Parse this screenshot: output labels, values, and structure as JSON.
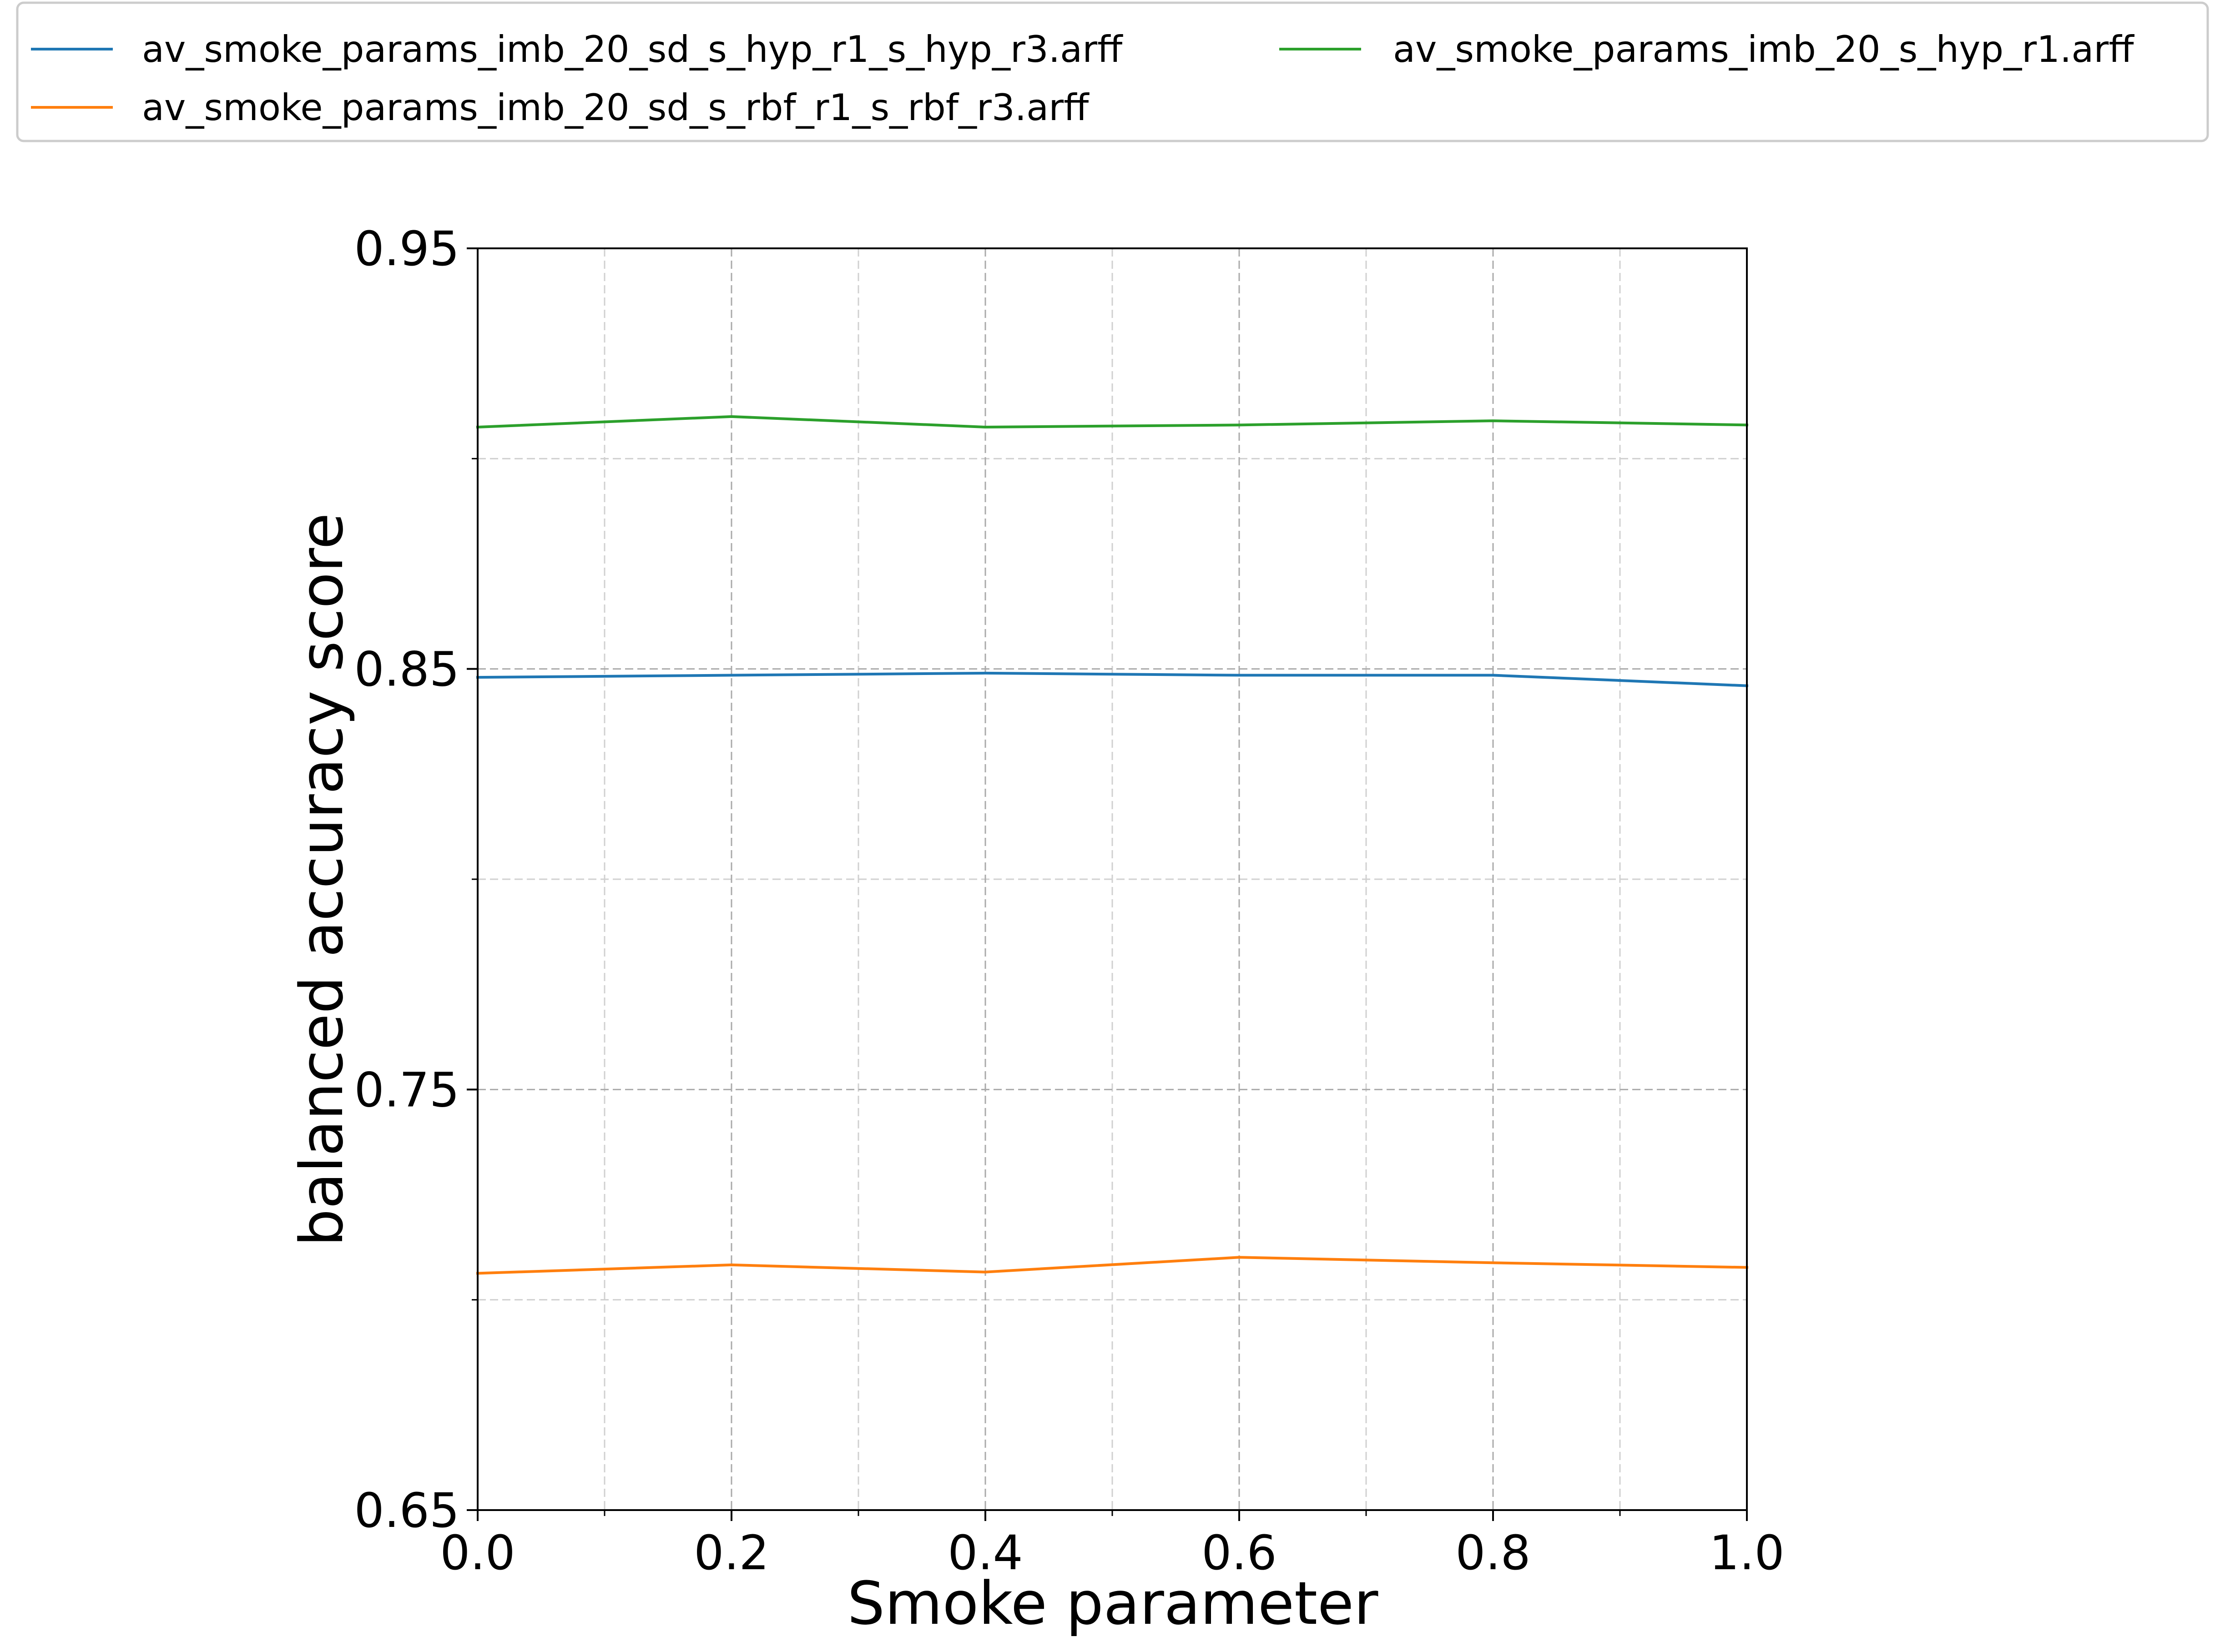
{
  "chart_data": {
    "type": "line",
    "title": "",
    "xlabel": "Smoke parameter",
    "ylabel": "balanced accuracy score",
    "xlim": [
      0.0,
      1.0
    ],
    "ylim": [
      0.65,
      0.95
    ],
    "x_ticks": [
      "0.0",
      "0.2",
      "0.4",
      "0.6",
      "0.8",
      "1.0"
    ],
    "y_ticks": [
      "0.65",
      "0.75",
      "0.85",
      "0.95"
    ],
    "x_tick_values": [
      0.0,
      0.2,
      0.4,
      0.6,
      0.8,
      1.0
    ],
    "y_tick_values": [
      0.65,
      0.75,
      0.85,
      0.95
    ],
    "x_minor_grid": [
      0.1,
      0.3,
      0.5,
      0.7,
      0.9
    ],
    "y_minor_grid": [
      0.7,
      0.8,
      0.9
    ],
    "grid": true,
    "legend_position": "top",
    "x": [
      0.0,
      0.2,
      0.4,
      0.6,
      0.8,
      1.0
    ],
    "series": [
      {
        "name": "av_smoke_params_imb_20_sd_s_hyp_r1_s_hyp_r3.arff",
        "color": "#1f77b4",
        "values": [
          0.848,
          0.8485,
          0.849,
          0.8485,
          0.8485,
          0.846
        ]
      },
      {
        "name": "av_smoke_params_imb_20_s_hyp_r1.arff",
        "color": "#2ca02c",
        "values": [
          0.9075,
          0.91,
          0.9075,
          0.908,
          0.909,
          0.908
        ]
      },
      {
        "name": "av_smoke_params_imb_20_sd_s_rbf_r1_s_rbf_r3.arff",
        "color": "#ff7f0e",
        "values": [
          0.7063,
          0.7083,
          0.7066,
          0.7101,
          0.7088,
          0.7077
        ]
      }
    ]
  }
}
